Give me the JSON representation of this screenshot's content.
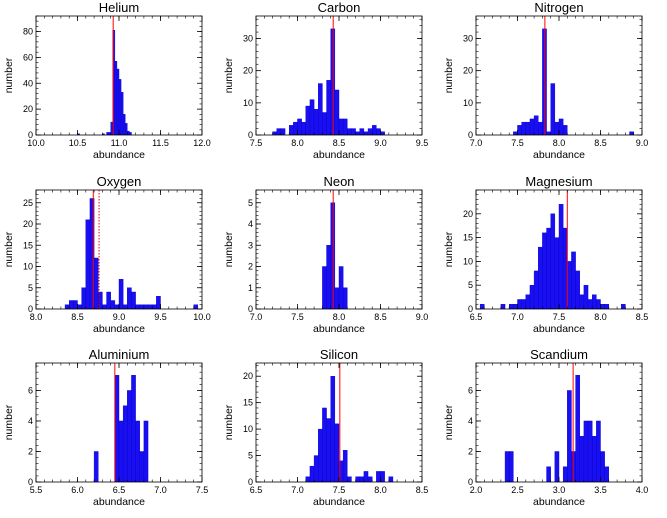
{
  "figure": {
    "colors": {
      "bar": "#1a0ff0",
      "bar_edge": "#0000cc",
      "marker": "#ff0000",
      "axis": "#000000"
    }
  },
  "chart_data": [
    {
      "type": "bar",
      "title": "Helium",
      "xlabel": "abundance",
      "ylabel": "number",
      "xlim": [
        10.0,
        12.0
      ],
      "ylim": [
        0,
        92
      ],
      "bin_width": 0.025,
      "xticks": [
        "10.0",
        "10.5",
        "11.0",
        "11.5",
        "12.0"
      ],
      "yticks": [
        0,
        20,
        40,
        60,
        80
      ],
      "bins": [
        [
          10.5,
          1
        ],
        [
          10.8,
          1
        ],
        [
          10.85,
          2
        ],
        [
          10.875,
          2
        ],
        [
          10.9,
          10
        ],
        [
          10.925,
          81
        ],
        [
          10.95,
          57
        ],
        [
          10.975,
          51
        ],
        [
          11.0,
          43
        ],
        [
          11.025,
          33
        ],
        [
          11.05,
          16
        ],
        [
          11.075,
          9
        ],
        [
          11.1,
          3
        ],
        [
          11.125,
          2
        ]
      ],
      "markers": [
        {
          "x": 10.93,
          "style": "solid"
        }
      ]
    },
    {
      "type": "bar",
      "title": "Carbon",
      "xlabel": "abundance",
      "ylabel": "number",
      "xlim": [
        7.5,
        9.5
      ],
      "ylim": [
        0,
        37
      ],
      "bin_width": 0.05,
      "xticks": [
        "7.5",
        "8.0",
        "8.5",
        "9.0",
        "9.5"
      ],
      "yticks": [
        0,
        10,
        20,
        30
      ],
      "bins": [
        [
          7.7,
          1
        ],
        [
          7.75,
          2
        ],
        [
          7.8,
          2
        ],
        [
          7.9,
          3
        ],
        [
          7.95,
          4
        ],
        [
          8.0,
          5
        ],
        [
          8.05,
          4
        ],
        [
          8.1,
          9
        ],
        [
          8.15,
          11
        ],
        [
          8.2,
          8
        ],
        [
          8.25,
          16
        ],
        [
          8.3,
          7
        ],
        [
          8.35,
          17
        ],
        [
          8.4,
          33
        ],
        [
          8.45,
          14
        ],
        [
          8.5,
          5
        ],
        [
          8.55,
          5
        ],
        [
          8.6,
          2
        ],
        [
          8.65,
          2
        ],
        [
          8.7,
          1
        ],
        [
          8.75,
          2
        ],
        [
          8.8,
          1
        ],
        [
          8.85,
          2
        ],
        [
          8.9,
          3
        ],
        [
          8.95,
          2
        ],
        [
          9.0,
          1
        ]
      ],
      "markers": [
        {
          "x": 8.43,
          "style": "solid"
        }
      ]
    },
    {
      "type": "bar",
      "title": "Nitrogen",
      "xlabel": "abundance",
      "ylabel": "number",
      "xlim": [
        7.0,
        9.0
      ],
      "ylim": [
        0,
        37
      ],
      "bin_width": 0.05,
      "xticks": [
        "7.0",
        "7.5",
        "8.0",
        "8.5",
        "9.0"
      ],
      "yticks": [
        0,
        10,
        20,
        30
      ],
      "bins": [
        [
          7.45,
          1
        ],
        [
          7.5,
          3
        ],
        [
          7.55,
          4
        ],
        [
          7.6,
          4
        ],
        [
          7.65,
          5
        ],
        [
          7.7,
          6
        ],
        [
          7.75,
          4
        ],
        [
          7.8,
          33
        ],
        [
          7.85,
          1
        ],
        [
          7.9,
          16
        ],
        [
          7.95,
          4
        ],
        [
          8.0,
          5
        ],
        [
          8.05,
          3
        ],
        [
          8.85,
          1
        ]
      ],
      "markers": [
        {
          "x": 7.83,
          "style": "solid"
        }
      ]
    },
    {
      "type": "bar",
      "title": "Oxygen",
      "xlabel": "abundance",
      "ylabel": "number",
      "xlim": [
        8.0,
        10.0
      ],
      "ylim": [
        0,
        28
      ],
      "bin_width": 0.05,
      "xticks": [
        "8.0",
        "8.5",
        "9.0",
        "9.5",
        "10.0"
      ],
      "yticks": [
        0,
        5,
        10,
        15,
        20,
        25
      ],
      "bins": [
        [
          8.35,
          1
        ],
        [
          8.4,
          2
        ],
        [
          8.45,
          2
        ],
        [
          8.5,
          1
        ],
        [
          8.55,
          5
        ],
        [
          8.6,
          21
        ],
        [
          8.65,
          26
        ],
        [
          8.7,
          12
        ],
        [
          8.75,
          4
        ],
        [
          8.8,
          1
        ],
        [
          8.85,
          4
        ],
        [
          8.9,
          2
        ],
        [
          8.95,
          1
        ],
        [
          9.0,
          7
        ],
        [
          9.05,
          1
        ],
        [
          9.1,
          5
        ],
        [
          9.15,
          4
        ],
        [
          9.2,
          1
        ],
        [
          9.25,
          1
        ],
        [
          9.3,
          1
        ],
        [
          9.35,
          1
        ],
        [
          9.4,
          1
        ],
        [
          9.45,
          3
        ],
        [
          9.9,
          1
        ]
      ],
      "markers": [
        {
          "x": 8.69,
          "style": "solid"
        },
        {
          "x": 8.76,
          "style": "dotted"
        }
      ]
    },
    {
      "type": "bar",
      "title": "Neon",
      "xlabel": "abundance",
      "ylabel": "number",
      "xlim": [
        7.0,
        9.0
      ],
      "ylim": [
        0,
        5.6
      ],
      "bin_width": 0.05,
      "xticks": [
        "7.0",
        "7.5",
        "8.0",
        "8.5",
        "9.0"
      ],
      "yticks": [
        0,
        1,
        2,
        3,
        4,
        5
      ],
      "bins": [
        [
          7.8,
          2
        ],
        [
          7.85,
          3
        ],
        [
          7.9,
          5
        ],
        [
          7.95,
          1
        ],
        [
          8.0,
          2
        ],
        [
          8.05,
          1
        ]
      ],
      "markers": [
        {
          "x": 7.93,
          "style": "solid"
        }
      ]
    },
    {
      "type": "bar",
      "title": "Magnesium",
      "xlabel": "abundance",
      "ylabel": "number",
      "xlim": [
        6.5,
        8.5
      ],
      "ylim": [
        0,
        25
      ],
      "bin_width": 0.05,
      "xticks": [
        "6.5",
        "7.0",
        "7.5",
        "8.0",
        "8.5"
      ],
      "yticks": [
        0,
        5,
        10,
        15,
        20
      ],
      "bins": [
        [
          6.55,
          1
        ],
        [
          6.8,
          1
        ],
        [
          6.9,
          1
        ],
        [
          6.95,
          1
        ],
        [
          7.0,
          2
        ],
        [
          7.05,
          2
        ],
        [
          7.1,
          3
        ],
        [
          7.15,
          5
        ],
        [
          7.2,
          8
        ],
        [
          7.25,
          13
        ],
        [
          7.3,
          16
        ],
        [
          7.35,
          17
        ],
        [
          7.4,
          20
        ],
        [
          7.45,
          15
        ],
        [
          7.5,
          22
        ],
        [
          7.55,
          17
        ],
        [
          7.6,
          10
        ],
        [
          7.65,
          12
        ],
        [
          7.7,
          8
        ],
        [
          7.75,
          3
        ],
        [
          7.8,
          5
        ],
        [
          7.85,
          2
        ],
        [
          7.9,
          3
        ],
        [
          7.95,
          2
        ],
        [
          8.0,
          1
        ],
        [
          8.05,
          1
        ],
        [
          8.25,
          1
        ]
      ],
      "markers": [
        {
          "x": 7.6,
          "style": "solid"
        }
      ]
    },
    {
      "type": "bar",
      "title": "Aluminium",
      "xlabel": "abundance",
      "ylabel": "number",
      "xlim": [
        5.5,
        7.5
      ],
      "ylim": [
        0,
        7.8
      ],
      "bin_width": 0.05,
      "xticks": [
        "5.5",
        "6.0",
        "6.5",
        "7.0",
        "7.5"
      ],
      "yticks": [
        0,
        2,
        4,
        6
      ],
      "bins": [
        [
          6.2,
          2
        ],
        [
          6.45,
          7
        ],
        [
          6.5,
          4
        ],
        [
          6.55,
          5
        ],
        [
          6.6,
          6
        ],
        [
          6.65,
          7
        ],
        [
          6.7,
          4
        ],
        [
          6.75,
          2
        ],
        [
          6.8,
          4
        ]
      ],
      "markers": [
        {
          "x": 6.45,
          "style": "solid"
        }
      ]
    },
    {
      "type": "bar",
      "title": "Silicon",
      "xlabel": "abundance",
      "ylabel": "number",
      "xlim": [
        6.5,
        8.5
      ],
      "ylim": [
        0,
        22.5
      ],
      "bin_width": 0.05,
      "xticks": [
        "6.5",
        "7.0",
        "7.5",
        "8.0",
        "8.5"
      ],
      "yticks": [
        0,
        5,
        10,
        15,
        20
      ],
      "bins": [
        [
          7.1,
          1
        ],
        [
          7.15,
          3
        ],
        [
          7.2,
          5
        ],
        [
          7.25,
          10
        ],
        [
          7.3,
          14
        ],
        [
          7.35,
          12
        ],
        [
          7.4,
          20
        ],
        [
          7.45,
          11
        ],
        [
          7.5,
          4
        ],
        [
          7.55,
          6
        ],
        [
          7.6,
          1
        ],
        [
          7.7,
          1
        ],
        [
          7.75,
          1
        ],
        [
          7.8,
          2
        ],
        [
          7.85,
          1
        ],
        [
          7.95,
          2
        ],
        [
          8.0,
          2
        ],
        [
          8.1,
          1
        ]
      ],
      "markers": [
        {
          "x": 7.51,
          "style": "solid"
        }
      ]
    },
    {
      "type": "bar",
      "title": "Scandium",
      "xlabel": "abundance",
      "ylabel": "number",
      "xlim": [
        2.0,
        4.0
      ],
      "ylim": [
        0,
        7.8
      ],
      "bin_width": 0.05,
      "xticks": [
        "2.0",
        "2.5",
        "3.0",
        "3.5",
        "4.0"
      ],
      "yticks": [
        0,
        2,
        4,
        6
      ],
      "bins": [
        [
          2.35,
          2
        ],
        [
          2.4,
          2
        ],
        [
          2.85,
          1
        ],
        [
          2.95,
          2
        ],
        [
          3.05,
          1
        ],
        [
          3.1,
          6
        ],
        [
          3.15,
          2
        ],
        [
          3.2,
          7
        ],
        [
          3.25,
          3
        ],
        [
          3.3,
          4
        ],
        [
          3.35,
          4
        ],
        [
          3.4,
          3
        ],
        [
          3.45,
          4
        ],
        [
          3.5,
          2
        ],
        [
          3.55,
          1
        ]
      ],
      "markers": [
        {
          "x": 3.17,
          "style": "solid"
        }
      ]
    }
  ]
}
